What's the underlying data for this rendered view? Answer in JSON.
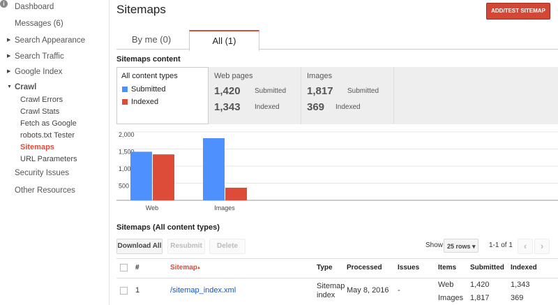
{
  "sidebar": {
    "items": [
      "Dashboard",
      "Messages (6)",
      "Search Appearance",
      "Search Traffic",
      "Google Index",
      "Crawl",
      "Crawl Errors",
      "Crawl Stats",
      "Fetch as Google",
      "robots.txt Tester",
      "Sitemaps",
      "URL Parameters",
      "Security Issues",
      "Other Resources"
    ]
  },
  "header": {
    "title": "Sitemaps",
    "button": "ADD/TEST SITEMAP"
  },
  "tabs": [
    "By me (0)",
    "All (1)"
  ],
  "content": {
    "heading": "Sitemaps content",
    "filter": "All content types",
    "panels": [
      {
        "title": "Web pages",
        "submitted": "1,420",
        "submitted_label": "Submitted",
        "indexed": "1,343",
        "indexed_label": "Indexed"
      },
      {
        "title": "Images",
        "submitted": "1,817",
        "submitted_label": "Submitted",
        "indexed": "369",
        "indexed_label": "Indexed"
      }
    ]
  },
  "chart_data": {
    "type": "bar",
    "categories": [
      "Web",
      "Images"
    ],
    "series": [
      {
        "name": "Submitted",
        "color": "#4d90fe",
        "values": [
          1420,
          1817
        ]
      },
      {
        "name": "Indexed",
        "color": "#dd4b39",
        "values": [
          1343,
          369
        ]
      }
    ],
    "ylim": [
      0,
      2000
    ],
    "yticks": [
      500,
      {
        "value": 1000,
        "label": "1,000"
      },
      {
        "value": 1500,
        "label": "1,500"
      },
      {
        "value": 2000,
        "label": "2,000"
      }
    ],
    "grid": true
  },
  "table": {
    "heading": "Sitemaps (All content types)",
    "buttons": [
      "Download All",
      "Resubmit",
      "Delete"
    ],
    "show": "Show",
    "rows_select": "25 rows",
    "pagination": "1-1 of 1",
    "columns": [
      "#",
      "Sitemap",
      "Type",
      "Processed",
      "Issues",
      "Items",
      "Submitted",
      "Indexed"
    ],
    "rows": [
      {
        "index": 1,
        "sitemap": "/sitemap_index.xml",
        "type": "Sitemap index",
        "processed": "May 8, 2016",
        "issues": "-",
        "items": [
          [
            "Web",
            "1,420",
            "1,343"
          ],
          [
            "Images",
            "1,817",
            "369"
          ]
        ]
      }
    ]
  }
}
